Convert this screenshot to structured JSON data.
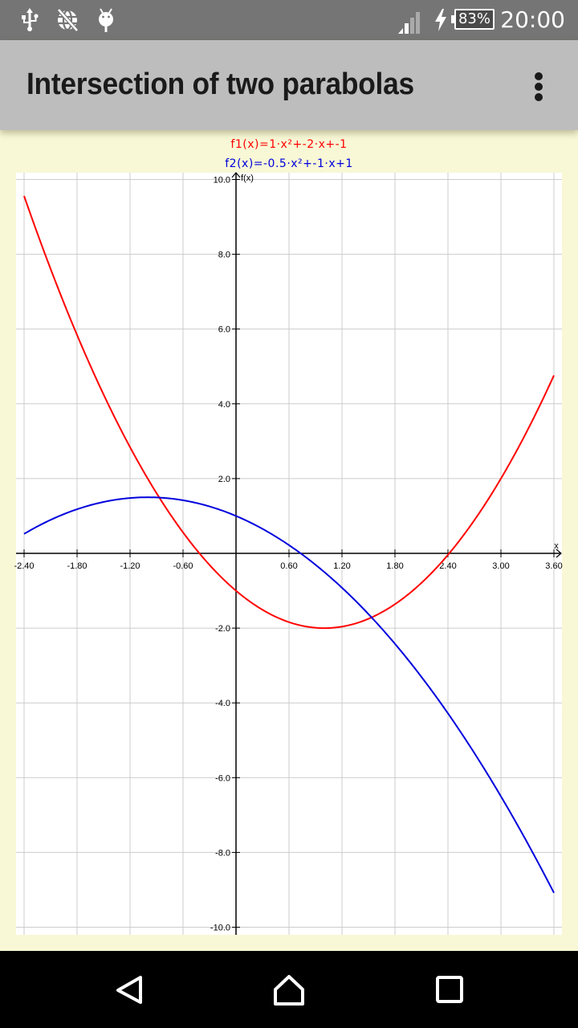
{
  "status_bar": {
    "left_icons": [
      "usb-icon",
      "no-data-globe-icon",
      "android-debug-icon"
    ],
    "signal_icon": "signal-icon",
    "charging_icon": "bolt-icon",
    "battery_percent": "83%",
    "time": "20:00"
  },
  "toolbar": {
    "title": "Intersection of two parabolas",
    "overflow_icon": "more-vert-icon"
  },
  "legend": {
    "f1": "f1(x)=1·x²+-2·x+-1",
    "f2": "f2(x)=-0.5·x²+-1·x+1"
  },
  "colors": {
    "background": "#f8f8d6",
    "plot_background": "#ffffff",
    "grid": "#cccccc",
    "axis": "#000000",
    "f1": "#ff0000",
    "f2": "#0000dd",
    "toolbar": "#bdbdbd",
    "status_bar": "#757575"
  },
  "chart_data": {
    "type": "line",
    "title": "Intersection of two parabolas",
    "xlabel": "x",
    "ylabel": "f(x)",
    "xlim": [
      -2.4,
      3.6
    ],
    "ylim": [
      -10.0,
      10.0
    ],
    "grid": true,
    "x_ticks": [
      "-2.40",
      "-1.80",
      "-1.20",
      "-0.60",
      "0.60",
      "1.20",
      "1.80",
      "2.40",
      "3.00",
      "3.60"
    ],
    "x_tick_values": [
      -2.4,
      -1.8,
      -1.2,
      -0.6,
      0.6,
      1.2,
      1.8,
      2.4,
      3.0,
      3.6
    ],
    "y_ticks": [
      "10.0",
      "8.0",
      "6.0",
      "4.0",
      "2.0",
      "-2.0",
      "-4.0",
      "-6.0",
      "-8.0",
      "-10.0"
    ],
    "y_tick_values": [
      10,
      8,
      6,
      4,
      2,
      -2,
      -4,
      -6,
      -8,
      -10
    ],
    "legend_position": "top-center",
    "series": [
      {
        "name": "f1(x)=1·x²+-2·x+-1",
        "coefficients": {
          "a": 1,
          "b": -2,
          "c": -1
        },
        "color": "#ff0000",
        "x": [
          -2.4,
          -1.8,
          -1.2,
          -0.6,
          0.0,
          0.6,
          1.0,
          1.2,
          1.8,
          2.4,
          3.0,
          3.6
        ],
        "values": [
          9.56,
          5.84,
          2.84,
          0.56,
          -1.0,
          -1.84,
          -2.0,
          -1.96,
          -1.36,
          -0.04,
          2.0,
          4.76
        ]
      },
      {
        "name": "f2(x)=-0.5·x²+-1·x+1",
        "coefficients": {
          "a": -0.5,
          "b": -1,
          "c": 1
        },
        "color": "#0000dd",
        "x": [
          -2.4,
          -1.8,
          -1.2,
          -1.0,
          -0.6,
          0.0,
          0.6,
          1.2,
          1.8,
          2.4,
          3.0,
          3.6
        ],
        "values": [
          0.52,
          1.18,
          1.48,
          1.5,
          1.42,
          1.0,
          0.22,
          -0.92,
          -2.42,
          -4.28,
          -6.5,
          -9.08
        ]
      }
    ],
    "intersections": [
      {
        "x": -0.87,
        "y": 1.49
      },
      {
        "x": 1.54,
        "y": -1.71
      }
    ]
  },
  "nav_bar": {
    "back_icon": "back-triangle-icon",
    "home_icon": "home-icon",
    "recents_icon": "recents-square-icon"
  }
}
